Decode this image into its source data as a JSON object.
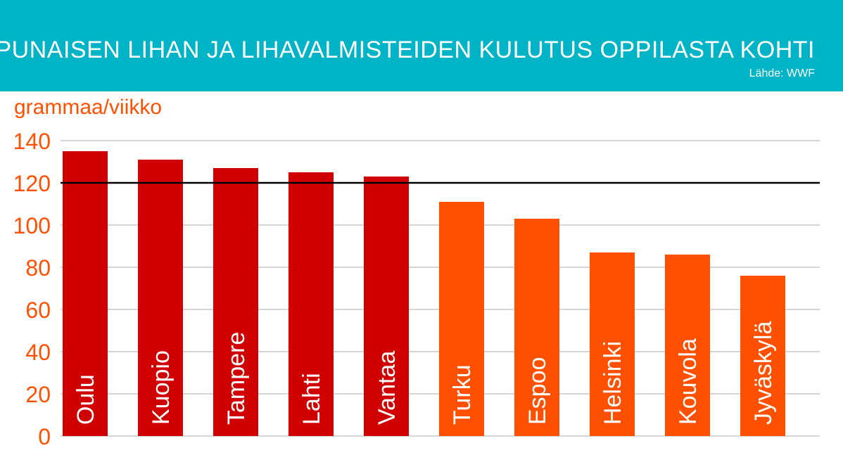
{
  "header": {
    "title": "PUNAISEN LIHAN JA LIHAVALMISTEIDEN KULUTUS OPPILASTA KOHTI",
    "source": "Lähde: WWF"
  },
  "colors": {
    "header_bg": "#00b4c8",
    "axis_text": "#ff5000",
    "above_line": "#d10000",
    "below_line": "#ff5000",
    "grid": "#d6d6d6",
    "reference_line": "#000000"
  },
  "chart_data": {
    "type": "bar",
    "ylabel": "grammaa/viikko",
    "ylim": [
      0,
      140
    ],
    "yticks": [
      "0",
      "20",
      "40",
      "60",
      "80",
      "100",
      "120",
      "140"
    ],
    "grid": true,
    "reference_line": 120,
    "categories": [
      "Oulu",
      "Kuopio",
      "Tampere",
      "Lahti",
      "Vantaa",
      "Turku",
      "Espoo",
      "Helsinki",
      "Kouvola",
      "Jyväskylä"
    ],
    "values": [
      135,
      131,
      127,
      125,
      123,
      111,
      103,
      87,
      86,
      76
    ]
  }
}
